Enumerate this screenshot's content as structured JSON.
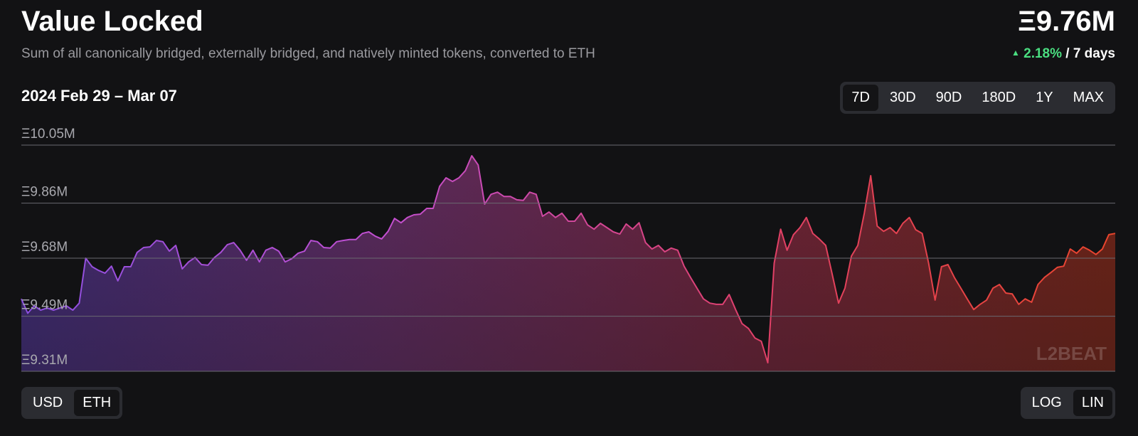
{
  "header": {
    "title": "Value Locked",
    "subtitle": "Sum of all canonically bridged, externally bridged, and natively minted tokens, converted to ETH",
    "total": "Ξ9.76M",
    "change": "2.18%",
    "change_period": "/ 7 days",
    "date_range": "2024 Feb 29 – Mar 07"
  },
  "range_buttons": {
    "labels": [
      "7D",
      "30D",
      "90D",
      "180D",
      "1Y",
      "MAX"
    ],
    "active": 0
  },
  "unit_toggle": {
    "labels": [
      "USD",
      "ETH"
    ],
    "active": 1
  },
  "scale_toggle": {
    "labels": [
      "LOG",
      "LIN"
    ],
    "active": 1
  },
  "chart_data": {
    "type": "area",
    "watermark": "L2BEAT",
    "ylim": [
      9.31,
      10.05
    ],
    "yticks": [
      {
        "value": 10.05,
        "label": "Ξ10.05M"
      },
      {
        "value": 9.86,
        "label": "Ξ9.86M"
      },
      {
        "value": 9.68,
        "label": "Ξ9.68M"
      },
      {
        "value": 9.49,
        "label": "Ξ9.49M"
      },
      {
        "value": 9.31,
        "label": "Ξ9.31M"
      }
    ],
    "grid": true,
    "line_colors": [
      "#8b4fe0",
      "#c24fd0",
      "#e0406a",
      "#e9452c"
    ],
    "fill_colors": [
      "#3f2b72",
      "#5a2a5c",
      "#6a2338",
      "#6e2418"
    ],
    "values": [
      9.547,
      9.5,
      9.524,
      9.51,
      9.517,
      9.51,
      9.517,
      9.524,
      9.51,
      9.533,
      9.68,
      9.652,
      9.64,
      9.631,
      9.654,
      9.606,
      9.652,
      9.652,
      9.699,
      9.715,
      9.717,
      9.738,
      9.734,
      9.703,
      9.722,
      9.645,
      9.668,
      9.682,
      9.659,
      9.657,
      9.682,
      9.699,
      9.724,
      9.731,
      9.706,
      9.673,
      9.706,
      9.668,
      9.706,
      9.715,
      9.703,
      9.668,
      9.678,
      9.696,
      9.703,
      9.738,
      9.734,
      9.715,
      9.713,
      9.734,
      9.738,
      9.741,
      9.741,
      9.761,
      9.766,
      9.752,
      9.743,
      9.768,
      9.81,
      9.796,
      9.813,
      9.822,
      9.824,
      9.843,
      9.843,
      9.915,
      9.943,
      9.931,
      9.943,
      9.966,
      10.015,
      9.985,
      9.857,
      9.889,
      9.896,
      9.882,
      9.882,
      9.871,
      9.869,
      9.896,
      9.889,
      9.817,
      9.831,
      9.813,
      9.827,
      9.801,
      9.801,
      9.827,
      9.789,
      9.775,
      9.794,
      9.78,
      9.766,
      9.759,
      9.792,
      9.775,
      9.796,
      9.731,
      9.71,
      9.722,
      9.701,
      9.713,
      9.706,
      9.654,
      9.617,
      9.582,
      9.547,
      9.533,
      9.529,
      9.529,
      9.561,
      9.512,
      9.466,
      9.45,
      9.419,
      9.408,
      9.338,
      9.664,
      9.775,
      9.706,
      9.757,
      9.78,
      9.813,
      9.761,
      9.743,
      9.722,
      9.629,
      9.533,
      9.582,
      9.687,
      9.722,
      9.827,
      9.95,
      9.785,
      9.768,
      9.78,
      9.761,
      9.794,
      9.813,
      9.773,
      9.761,
      9.664,
      9.543,
      9.652,
      9.659,
      9.617,
      9.582,
      9.547,
      9.512,
      9.529,
      9.543,
      9.582,
      9.594,
      9.566,
      9.563,
      9.529,
      9.547,
      9.536,
      9.594,
      9.617,
      9.633,
      9.65,
      9.654,
      9.71,
      9.696,
      9.717,
      9.706,
      9.692,
      9.71,
      9.757,
      9.761
    ]
  }
}
